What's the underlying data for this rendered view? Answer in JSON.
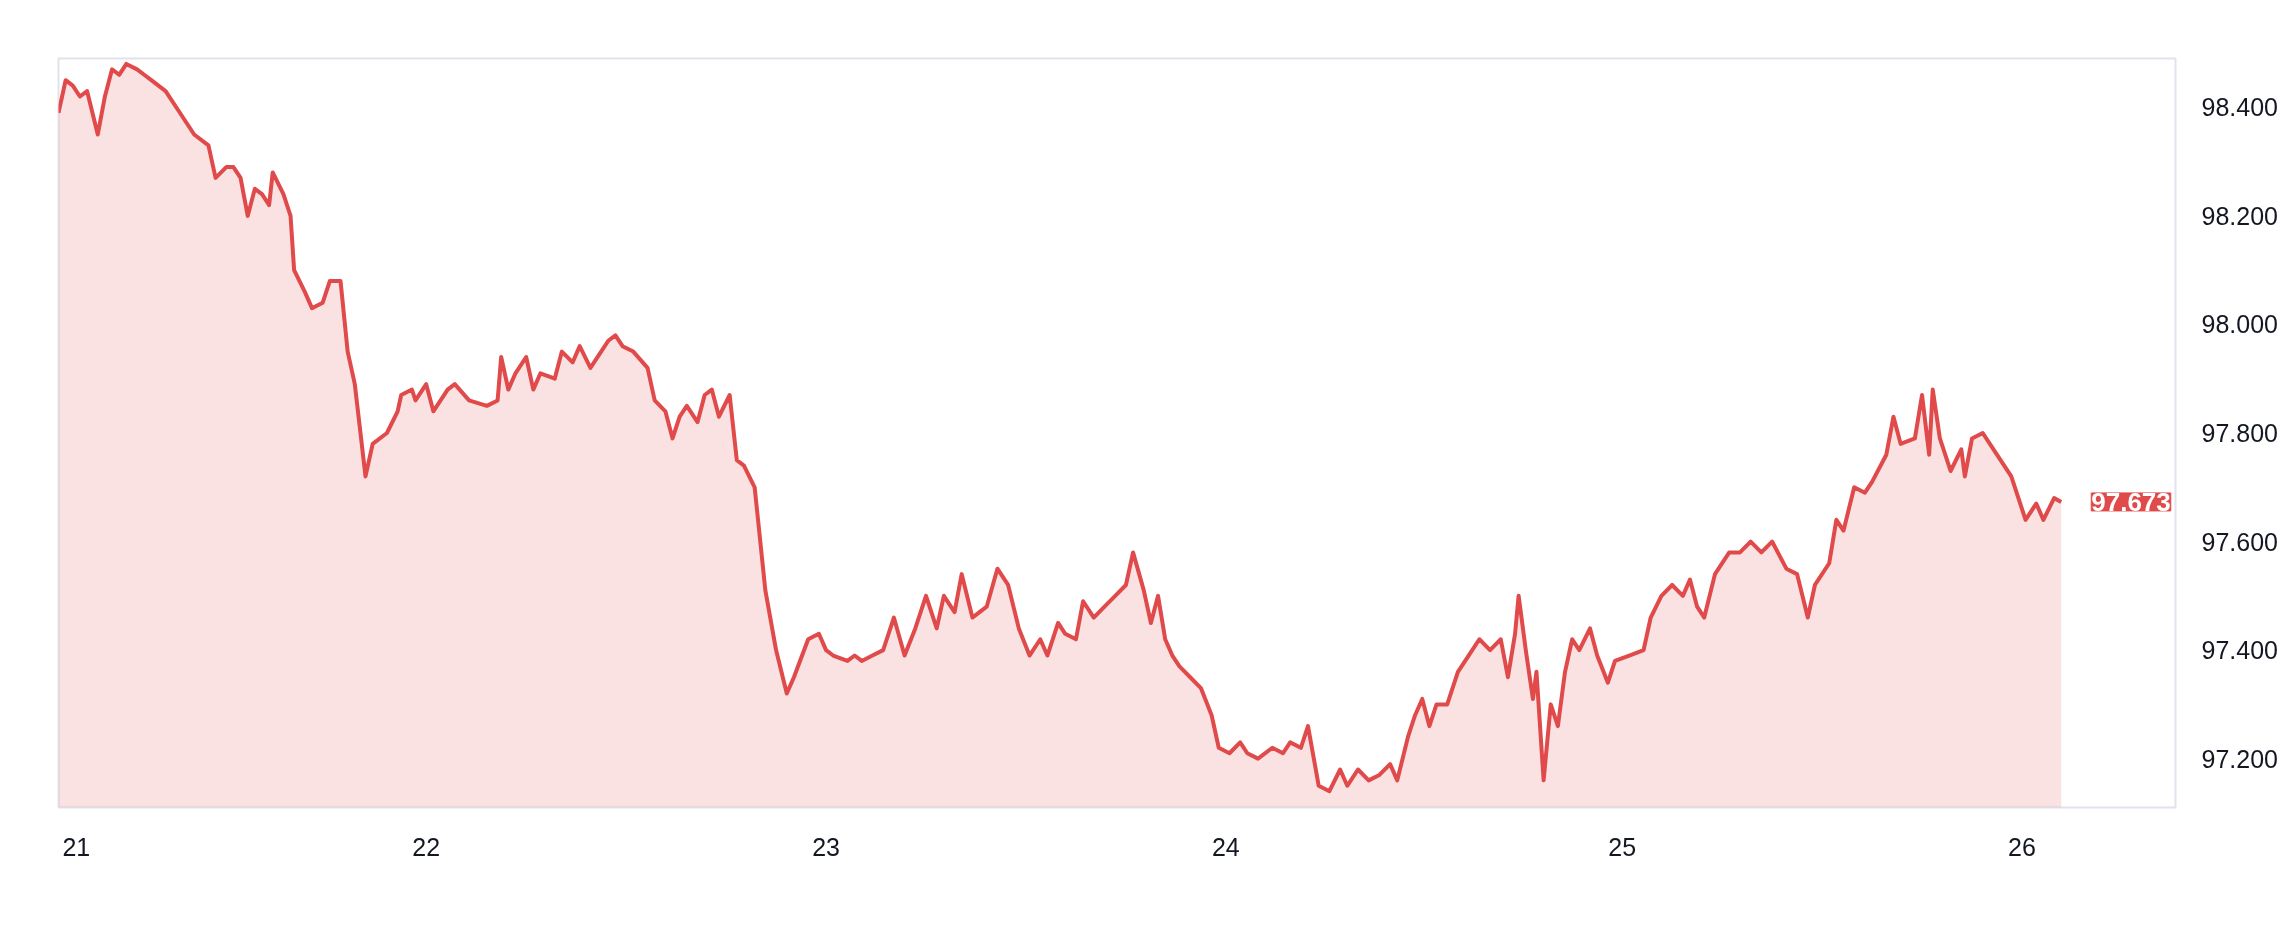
{
  "chart_data": {
    "type": "area",
    "xlim": [
      20.97,
      26.9
    ],
    "ylim": [
      97.11,
      98.49
    ],
    "xticks": [
      {
        "value": 21.02,
        "label": "21"
      },
      {
        "value": 22.0,
        "label": "22"
      },
      {
        "value": 23.12,
        "label": "23"
      },
      {
        "value": 24.24,
        "label": "24"
      },
      {
        "value": 25.35,
        "label": "25"
      },
      {
        "value": 26.47,
        "label": "26"
      }
    ],
    "yticks": [
      {
        "value": 97.2,
        "label": "97.200"
      },
      {
        "value": 97.4,
        "label": "97.400"
      },
      {
        "value": 97.6,
        "label": "97.600"
      },
      {
        "value": 97.8,
        "label": "97.800"
      },
      {
        "value": 98.0,
        "label": "98.000"
      },
      {
        "value": 98.2,
        "label": "98.200"
      },
      {
        "value": 98.4,
        "label": "98.400"
      }
    ],
    "annotations": [
      {
        "text": "97.673",
        "x": 26.58,
        "y": 97.673
      }
    ],
    "series": [
      {
        "color": "#e04a4a",
        "x": [
          20.97,
          20.99,
          21.01,
          21.03,
          21.05,
          21.08,
          21.1,
          21.12,
          21.14,
          21.16,
          21.19,
          21.21,
          21.23,
          21.27,
          21.31,
          21.35,
          21.39,
          21.41,
          21.44,
          21.46,
          21.48,
          21.5,
          21.52,
          21.54,
          21.56,
          21.57,
          21.6,
          21.62,
          21.63,
          21.66,
          21.68,
          21.71,
          21.73,
          21.76,
          21.78,
          21.8,
          21.83,
          21.85,
          21.89,
          21.92,
          21.93,
          21.96,
          21.97,
          22.0,
          22.02,
          22.06,
          22.08,
          22.12,
          22.17,
          22.2,
          22.21,
          22.23,
          22.25,
          22.28,
          22.3,
          22.32,
          22.36,
          22.38,
          22.41,
          22.43,
          22.46,
          22.49,
          22.51,
          22.53,
          22.55,
          22.58,
          22.62,
          22.64,
          22.67,
          22.69,
          22.71,
          22.73,
          22.76,
          22.78,
          22.8,
          22.82,
          22.85,
          22.87,
          22.89,
          22.92,
          22.95,
          22.98,
          23.01,
          23.03,
          23.07,
          23.1,
          23.12,
          23.14,
          23.18,
          23.2,
          23.22,
          23.25,
          23.28,
          23.31,
          23.34,
          23.37,
          23.4,
          23.43,
          23.45,
          23.48,
          23.5,
          23.53,
          23.57,
          23.6,
          23.63,
          23.66,
          23.69,
          23.72,
          23.74,
          23.77,
          23.79,
          23.82,
          23.84,
          23.87,
          23.9,
          23.93,
          23.96,
          23.98,
          24.01,
          24.03,
          24.05,
          24.07,
          24.09,
          24.11,
          24.14,
          24.17,
          24.2,
          24.22,
          24.25,
          24.28,
          24.3,
          24.33,
          24.37,
          24.4,
          24.42,
          24.45,
          24.47,
          24.5,
          24.53,
          24.56,
          24.58,
          24.61,
          24.64,
          24.67,
          24.7,
          24.72,
          24.75,
          24.77,
          24.79,
          24.81,
          24.83,
          24.86,
          24.89,
          24.92,
          24.95,
          24.98,
          25.01,
          25.03,
          25.05,
          25.06,
          25.08,
          25.1,
          25.11,
          25.13,
          25.15,
          25.17,
          25.19,
          25.21,
          25.23,
          25.26,
          25.28,
          25.31,
          25.33,
          25.37,
          25.41,
          25.43,
          25.46,
          25.49,
          25.52,
          25.54,
          25.56,
          25.58,
          25.61,
          25.65,
          25.68,
          25.71,
          25.74,
          25.77,
          25.81,
          25.84,
          25.87,
          25.89,
          25.93,
          25.95,
          25.97,
          26.0,
          26.03,
          26.05,
          26.09,
          26.11,
          26.13,
          26.17,
          26.19,
          26.21,
          26.22,
          26.24,
          26.27,
          26.3,
          26.31,
          26.33,
          26.36,
          26.38,
          26.41,
          26.44,
          26.46,
          26.48,
          26.51,
          26.53,
          26.56,
          26.58
        ],
        "values": [
          98.39,
          98.45,
          98.44,
          98.42,
          98.43,
          98.35,
          98.42,
          98.47,
          98.46,
          98.48,
          98.47,
          98.46,
          98.45,
          98.43,
          98.39,
          98.35,
          98.33,
          98.27,
          98.29,
          98.29,
          98.27,
          98.2,
          98.25,
          98.24,
          98.22,
          98.28,
          98.24,
          98.2,
          98.1,
          98.06,
          98.03,
          98.04,
          98.08,
          98.08,
          97.95,
          97.89,
          97.72,
          97.78,
          97.8,
          97.84,
          97.87,
          97.88,
          97.86,
          97.89,
          97.84,
          97.88,
          97.89,
          97.86,
          97.85,
          97.86,
          97.94,
          97.88,
          97.91,
          97.94,
          97.88,
          97.91,
          97.9,
          97.95,
          97.93,
          97.96,
          97.92,
          97.95,
          97.97,
          97.98,
          97.96,
          97.95,
          97.92,
          97.86,
          97.84,
          97.79,
          97.83,
          97.85,
          97.82,
          97.87,
          97.88,
          97.83,
          97.87,
          97.75,
          97.74,
          97.7,
          97.51,
          97.4,
          97.32,
          97.35,
          97.42,
          97.43,
          97.4,
          97.39,
          97.38,
          97.39,
          97.38,
          97.39,
          97.4,
          97.46,
          97.39,
          97.44,
          97.5,
          97.44,
          97.5,
          97.47,
          97.54,
          97.46,
          97.48,
          97.55,
          97.52,
          97.44,
          97.39,
          97.42,
          97.39,
          97.45,
          97.43,
          97.42,
          97.49,
          97.46,
          97.48,
          97.5,
          97.52,
          97.58,
          97.51,
          97.45,
          97.5,
          97.42,
          97.39,
          97.37,
          97.35,
          97.33,
          97.28,
          97.22,
          97.21,
          97.23,
          97.21,
          97.2,
          97.22,
          97.21,
          97.23,
          97.22,
          97.26,
          97.15,
          97.14,
          97.18,
          97.15,
          97.18,
          97.16,
          97.17,
          97.19,
          97.16,
          97.24,
          97.28,
          97.31,
          97.26,
          97.3,
          97.3,
          97.36,
          97.39,
          97.42,
          97.4,
          97.42,
          97.35,
          97.43,
          97.5,
          97.4,
          97.31,
          97.36,
          97.16,
          97.3,
          97.26,
          97.36,
          97.42,
          97.4,
          97.44,
          97.39,
          97.34,
          97.38,
          97.39,
          97.4,
          97.46,
          97.5,
          97.52,
          97.5,
          97.53,
          97.48,
          97.46,
          97.54,
          97.58,
          97.58,
          97.6,
          97.58,
          97.6,
          97.55,
          97.54,
          97.46,
          97.52,
          97.56,
          97.64,
          97.62,
          97.7,
          97.69,
          97.71,
          97.76,
          97.83,
          97.78,
          97.79,
          97.87,
          97.76,
          97.88,
          97.79,
          97.73,
          97.77,
          97.72,
          97.79,
          97.8,
          97.78,
          97.75,
          97.72,
          97.68,
          97.64,
          97.67,
          97.64,
          97.68,
          97.673
        ]
      }
    ]
  }
}
